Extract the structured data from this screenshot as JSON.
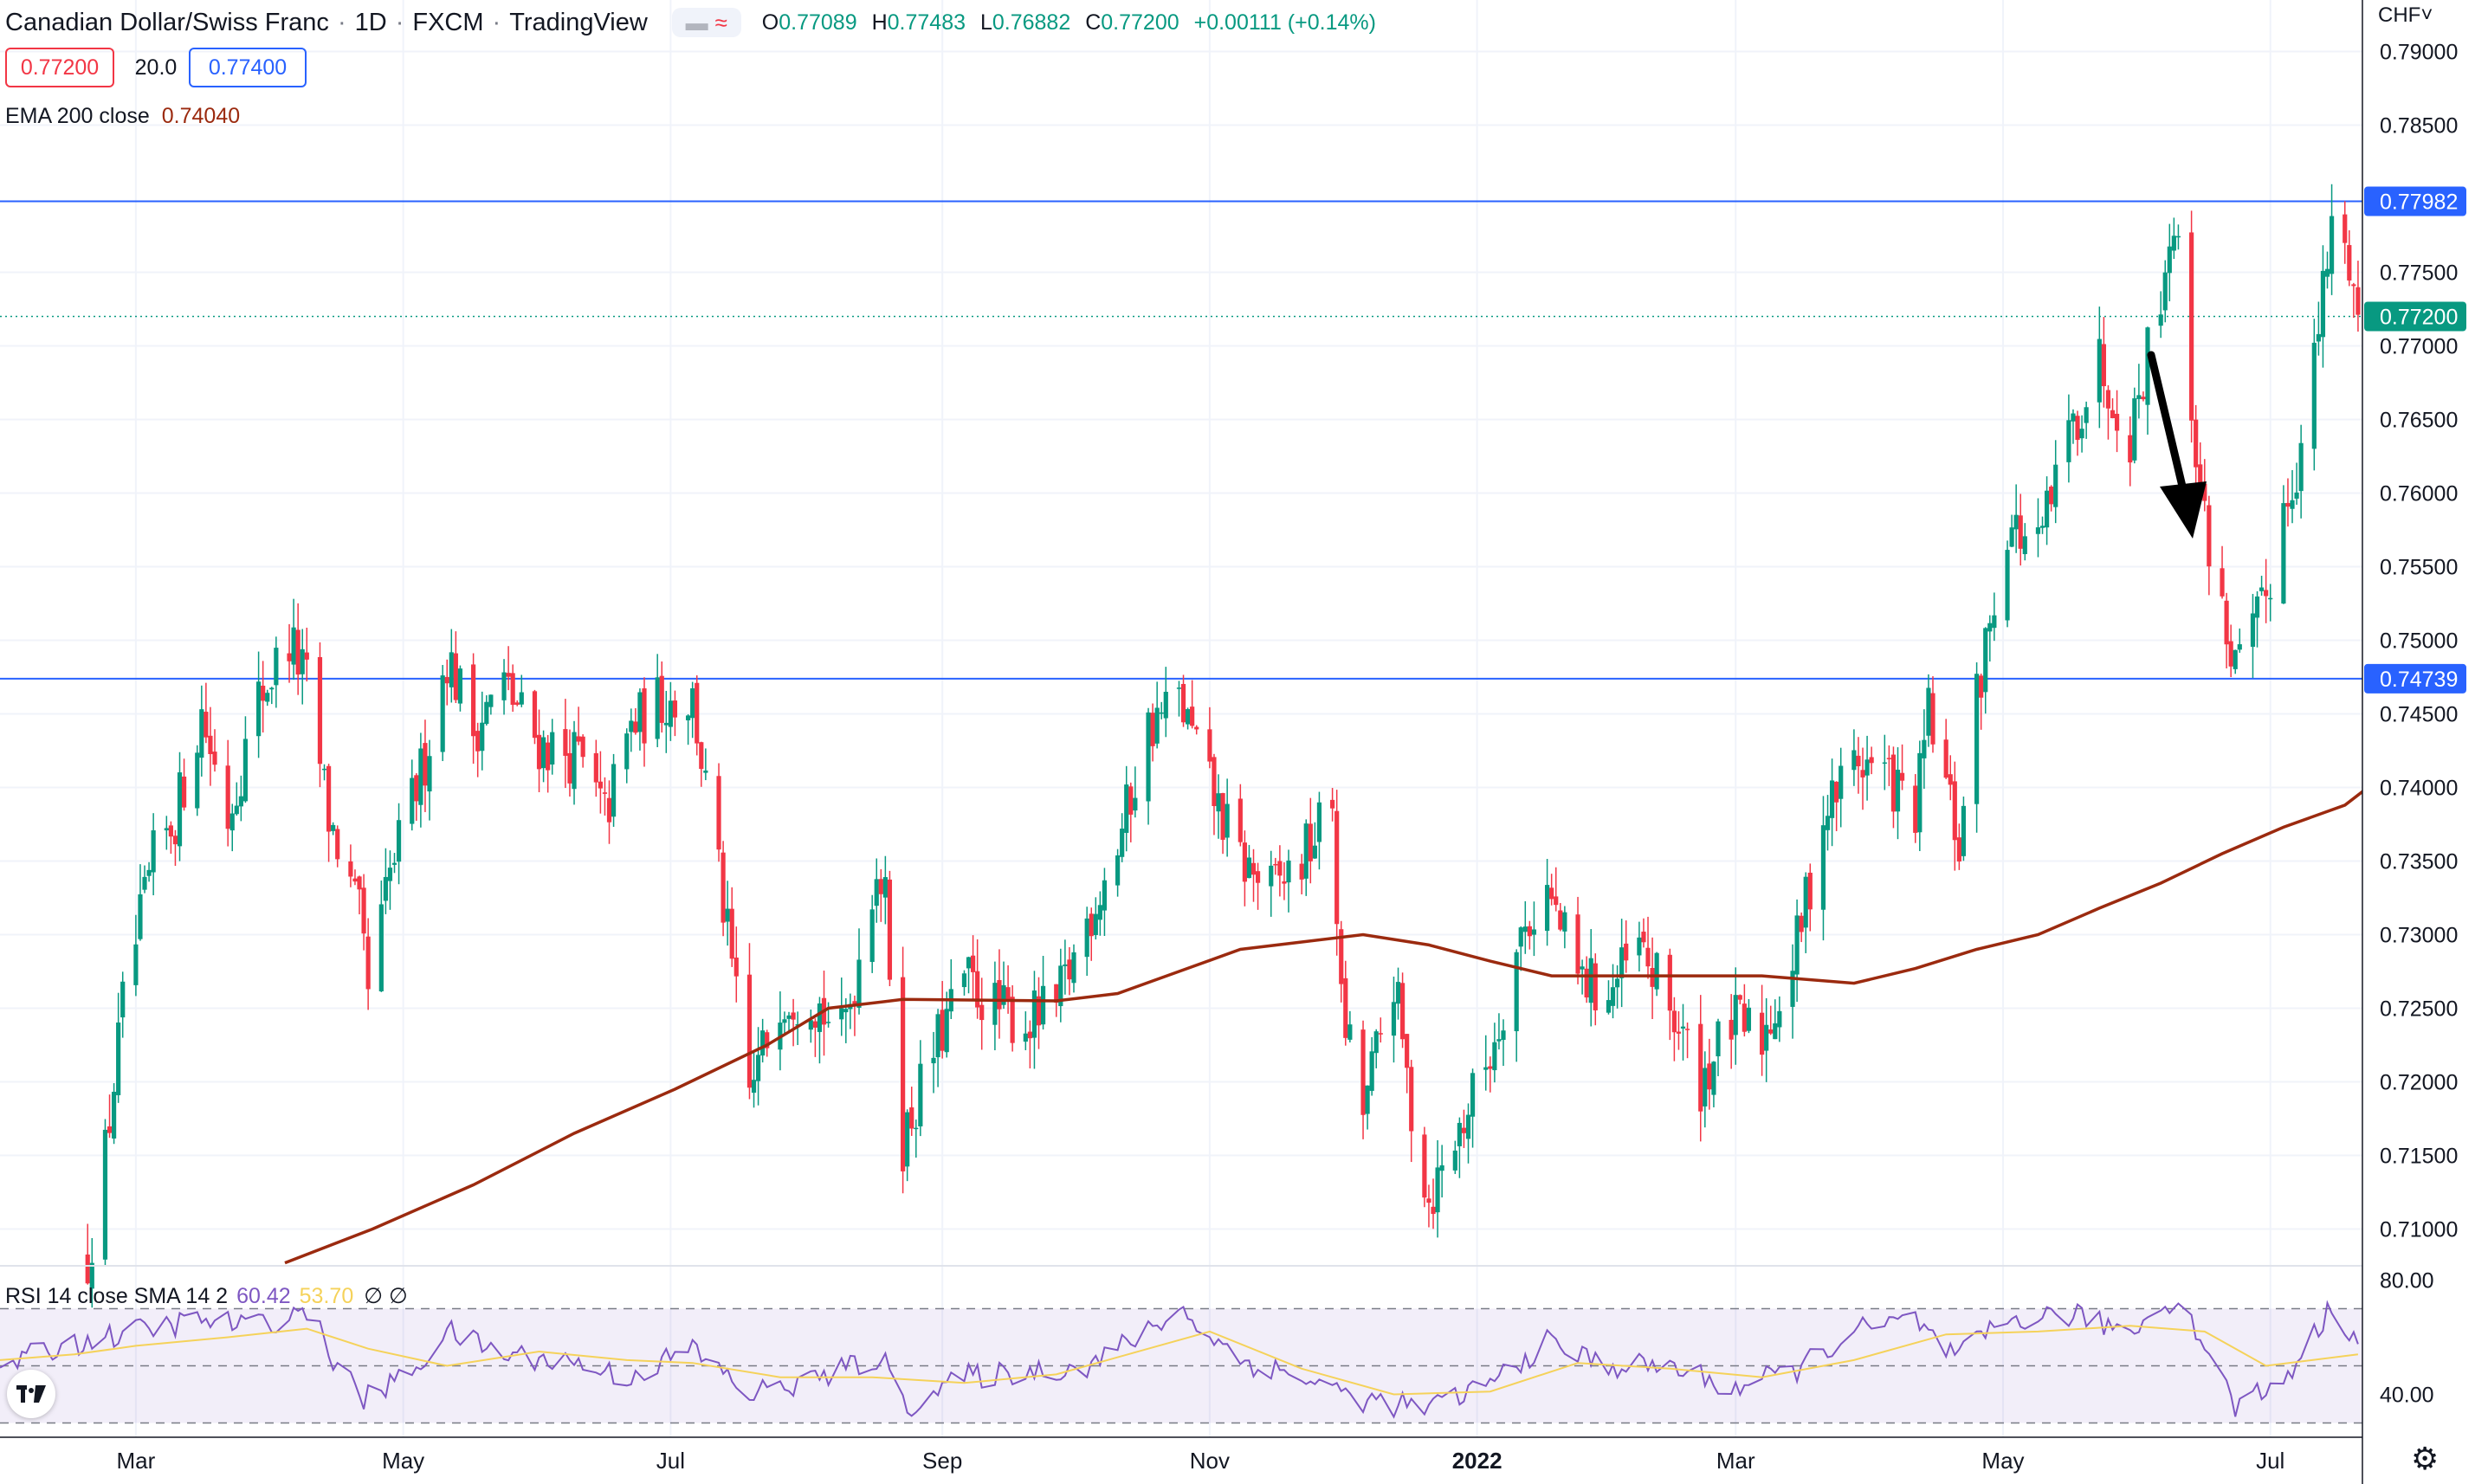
{
  "header": {
    "symbol": "Canadian Dollar/Swiss Franc",
    "interval": "1D",
    "exchange": "FXCM",
    "platform": "TradingView",
    "ohlc": {
      "o_label": "O",
      "o": "0.77089",
      "h_label": "H",
      "h": "0.77483",
      "l_label": "L",
      "l": "0.76882",
      "c_label": "C",
      "c": "0.77200",
      "change": "+0.00111 (+0.14%)"
    },
    "sell_price": "0.77200",
    "spread": "20.0",
    "buy_price": "0.77400"
  },
  "ema_legend": {
    "label": "EMA 200 close",
    "value": "0.74040"
  },
  "rsi_legend": {
    "label": "RSI 14 close SMA 14 2",
    "rsi_value": "60.42",
    "sma_value": "53.70",
    "extra": "∅ ∅"
  },
  "currency_label": "CHF˅",
  "icons": {
    "logo": "tradingview-logo-icon",
    "settings": "gear-icon",
    "annotation": "down-arrow-icon"
  },
  "colors": {
    "up": "#089981",
    "down": "#f23645",
    "ema": "#9b2a0f",
    "hline": "#2962ff",
    "rsi": "#7e57c2",
    "rsi_sma": "#f5d25a"
  },
  "chart_data": [
    {
      "type": "candlestick",
      "title": "",
      "ylim": [
        0.7075,
        0.7935
      ],
      "y_ticks": [
        "0.79000",
        "0.78500",
        "0.77500",
        "0.77000",
        "0.76500",
        "0.76000",
        "0.75500",
        "0.75000",
        "0.74500",
        "0.74000",
        "0.73500",
        "0.73000",
        "0.72500",
        "0.72000",
        "0.71500",
        "0.71000"
      ],
      "x_ticks": [
        "Mar",
        "May",
        "Jul",
        "Sep",
        "Nov",
        "2022",
        "Mar",
        "May",
        "Jul"
      ],
      "x_tick_dates": [
        "2021-03-01",
        "2021-05-01",
        "2021-07-01",
        "2021-09-01",
        "2021-11-01",
        "2022-01-01",
        "2022-03-01",
        "2022-05-01",
        "2022-07-01"
      ],
      "x_range": [
        "2021-01-29",
        "2022-07-22"
      ],
      "horizontal_levels": [
        {
          "value": 0.77982,
          "label": "0.77982"
        },
        {
          "value": 0.74739,
          "label": "0.74739"
        }
      ],
      "last_price": {
        "value": 0.772,
        "label": "0.77200"
      },
      "price_path": [
        [
          "2021-02-18",
          0.708
        ],
        [
          "2021-02-22",
          0.715
        ],
        [
          "2021-02-26",
          0.725
        ],
        [
          "2021-03-05",
          0.735
        ],
        [
          "2021-03-10",
          0.738
        ],
        [
          "2021-03-16",
          0.745
        ],
        [
          "2021-03-22",
          0.738
        ],
        [
          "2021-03-29",
          0.746
        ],
        [
          "2021-04-05",
          0.75
        ],
        [
          "2021-04-09",
          0.747
        ],
        [
          "2021-04-14",
          0.738
        ],
        [
          "2021-04-21",
          0.731
        ],
        [
          "2021-04-23",
          0.726
        ],
        [
          "2021-04-28",
          0.734
        ],
        [
          "2021-05-06",
          0.742
        ],
        [
          "2021-05-11",
          0.749
        ],
        [
          "2021-05-17",
          0.744
        ],
        [
          "2021-05-24",
          0.747
        ],
        [
          "2021-06-01",
          0.743
        ],
        [
          "2021-06-10",
          0.742
        ],
        [
          "2021-06-16",
          0.738
        ],
        [
          "2021-06-22",
          0.744
        ],
        [
          "2021-06-29",
          0.746
        ],
        [
          "2021-07-06",
          0.746
        ],
        [
          "2021-07-12",
          0.734
        ],
        [
          "2021-07-19",
          0.719
        ],
        [
          "2021-07-26",
          0.726
        ],
        [
          "2021-08-02",
          0.726
        ],
        [
          "2021-08-09",
          0.723
        ],
        [
          "2021-08-12",
          0.727
        ],
        [
          "2021-08-17",
          0.735
        ],
        [
          "2021-08-19",
          0.732
        ],
        [
          "2021-08-23",
          0.716
        ],
        [
          "2021-08-30",
          0.722
        ],
        [
          "2021-09-06",
          0.727
        ],
        [
          "2021-09-13",
          0.725
        ],
        [
          "2021-09-20",
          0.724
        ],
        [
          "2021-09-27",
          0.725
        ],
        [
          "2021-10-04",
          0.731
        ],
        [
          "2021-10-11",
          0.736
        ],
        [
          "2021-10-18",
          0.744
        ],
        [
          "2021-10-25",
          0.746
        ],
        [
          "2021-11-01",
          0.74
        ],
        [
          "2021-11-08",
          0.735
        ],
        [
          "2021-11-15",
          0.733
        ],
        [
          "2021-11-22",
          0.735
        ],
        [
          "2021-11-29",
          0.739
        ],
        [
          "2021-12-01",
          0.725
        ],
        [
          "2021-12-06",
          0.718
        ],
        [
          "2021-12-13",
          0.727
        ],
        [
          "2021-12-17",
          0.718
        ],
        [
          "2021-12-21",
          0.712
        ],
        [
          "2021-12-27",
          0.716
        ],
        [
          "2022-01-04",
          0.722
        ],
        [
          "2022-01-11",
          0.73
        ],
        [
          "2022-01-17",
          0.733
        ],
        [
          "2022-01-24",
          0.727
        ],
        [
          "2022-01-31",
          0.726
        ],
        [
          "2022-02-07",
          0.729
        ],
        [
          "2022-02-14",
          0.725
        ],
        [
          "2022-02-21",
          0.72
        ],
        [
          "2022-02-28",
          0.724
        ],
        [
          "2022-03-07",
          0.723
        ],
        [
          "2022-03-14",
          0.728
        ],
        [
          "2022-03-21",
          0.738
        ],
        [
          "2022-03-28",
          0.742
        ],
        [
          "2022-04-04",
          0.741
        ],
        [
          "2022-04-11",
          0.738
        ],
        [
          "2022-04-14",
          0.745
        ],
        [
          "2022-04-18",
          0.74
        ],
        [
          "2022-04-21",
          0.736
        ],
        [
          "2022-04-25",
          0.746
        ],
        [
          "2022-05-02",
          0.758
        ],
        [
          "2022-05-09",
          0.756
        ],
        [
          "2022-05-16",
          0.764
        ],
        [
          "2022-05-23",
          0.769
        ],
        [
          "2022-05-30",
          0.764
        ],
        [
          "2022-06-06",
          0.774
        ],
        [
          "2022-06-09",
          0.779
        ],
        [
          "2022-06-13",
          0.766
        ],
        [
          "2022-06-16",
          0.758
        ],
        [
          "2022-06-20",
          0.752
        ],
        [
          "2022-06-23",
          0.748
        ],
        [
          "2022-06-27",
          0.75
        ],
        [
          "2022-06-30",
          0.753
        ],
        [
          "2022-07-04",
          0.759
        ],
        [
          "2022-07-08",
          0.763
        ],
        [
          "2022-07-12",
          0.771
        ],
        [
          "2022-07-15",
          0.778
        ],
        [
          "2022-07-19",
          0.776
        ],
        [
          "2022-07-21",
          0.772
        ]
      ],
      "ema_200": [
        [
          "2021-04-04",
          0.7077
        ],
        [
          "2021-04-24",
          0.71
        ],
        [
          "2021-05-17",
          0.713
        ],
        [
          "2021-06-09",
          0.7165
        ],
        [
          "2021-07-02",
          0.7195
        ],
        [
          "2021-07-23",
          0.7225
        ],
        [
          "2021-08-06",
          0.725
        ],
        [
          "2021-08-23",
          0.7256
        ],
        [
          "2021-09-27",
          0.7255
        ],
        [
          "2021-10-11",
          0.726
        ],
        [
          "2021-10-25",
          0.7275
        ],
        [
          "2021-11-08",
          0.729
        ],
        [
          "2021-11-22",
          0.7295
        ],
        [
          "2021-12-06",
          0.73
        ],
        [
          "2021-12-21",
          0.7293
        ],
        [
          "2022-01-04",
          0.7282
        ],
        [
          "2022-01-18",
          0.7272
        ],
        [
          "2022-02-14",
          0.7272
        ],
        [
          "2022-03-07",
          0.7272
        ],
        [
          "2022-03-28",
          0.7267
        ],
        [
          "2022-04-11",
          0.7277
        ],
        [
          "2022-04-25",
          0.729
        ],
        [
          "2022-05-09",
          0.73
        ],
        [
          "2022-05-23",
          0.7318
        ],
        [
          "2022-06-06",
          0.7335
        ],
        [
          "2022-06-20",
          0.7355
        ],
        [
          "2022-07-04",
          0.7373
        ],
        [
          "2022-07-18",
          0.7388
        ],
        [
          "2022-07-25",
          0.7404
        ]
      ]
    },
    {
      "type": "line",
      "title": "RSI",
      "ylim": [
        25,
        85
      ],
      "y_ticks": [
        "80.00",
        "40.00"
      ],
      "bands": [
        70,
        50,
        30
      ],
      "series": [
        {
          "name": "RSI",
          "values": [
            [
              "2021-01-29",
              50
            ],
            [
              "2021-02-15",
              58
            ],
            [
              "2021-03-01",
              62
            ],
            [
              "2021-03-15",
              66
            ],
            [
              "2021-03-29",
              64
            ],
            [
              "2021-04-09",
              70
            ],
            [
              "2021-04-16",
              50
            ],
            [
              "2021-04-22",
              38
            ],
            [
              "2021-05-03",
              48
            ],
            [
              "2021-05-11",
              62
            ],
            [
              "2021-05-24",
              54
            ],
            [
              "2021-06-07",
              52
            ],
            [
              "2021-06-21",
              46
            ],
            [
              "2021-07-06",
              56
            ],
            [
              "2021-07-19",
              40
            ],
            [
              "2021-08-02",
              45
            ],
            [
              "2021-08-18",
              53
            ],
            [
              "2021-08-24",
              36
            ],
            [
              "2021-09-06",
              46
            ],
            [
              "2021-09-20",
              48
            ],
            [
              "2021-10-04",
              50
            ],
            [
              "2021-10-18",
              62
            ],
            [
              "2021-10-25",
              70
            ],
            [
              "2021-11-08",
              52
            ],
            [
              "2021-11-22",
              46
            ],
            [
              "2021-12-06",
              38
            ],
            [
              "2021-12-21",
              35
            ],
            [
              "2022-01-04",
              44
            ],
            [
              "2022-01-17",
              58
            ],
            [
              "2022-01-31",
              50
            ],
            [
              "2022-02-14",
              50
            ],
            [
              "2022-02-28",
              42
            ],
            [
              "2022-03-14",
              48
            ],
            [
              "2022-03-28",
              62
            ],
            [
              "2022-04-11",
              66
            ],
            [
              "2022-04-20",
              52
            ],
            [
              "2022-05-02",
              66
            ],
            [
              "2022-05-16",
              68
            ],
            [
              "2022-05-30",
              62
            ],
            [
              "2022-06-09",
              74
            ],
            [
              "2022-06-16",
              58
            ],
            [
              "2022-06-23",
              36
            ],
            [
              "2022-07-04",
              45
            ],
            [
              "2022-07-15",
              70
            ],
            [
              "2022-07-21",
              60
            ]
          ]
        },
        {
          "name": "SMA",
          "values": [
            [
              "2021-01-29",
              52
            ],
            [
              "2021-02-15",
              54
            ],
            [
              "2021-03-01",
              57
            ],
            [
              "2021-03-22",
              60
            ],
            [
              "2021-04-09",
              63
            ],
            [
              "2021-04-23",
              56
            ],
            [
              "2021-05-11",
              50
            ],
            [
              "2021-06-01",
              55
            ],
            [
              "2021-06-21",
              52
            ],
            [
              "2021-07-06",
              51
            ],
            [
              "2021-07-26",
              46
            ],
            [
              "2021-08-16",
              46
            ],
            [
              "2021-09-06",
              44
            ],
            [
              "2021-09-27",
              47
            ],
            [
              "2021-10-18",
              56
            ],
            [
              "2021-11-01",
              62
            ],
            [
              "2021-11-22",
              49
            ],
            [
              "2021-12-13",
              40
            ],
            [
              "2022-01-04",
              41
            ],
            [
              "2022-01-24",
              51
            ],
            [
              "2022-02-14",
              49
            ],
            [
              "2022-03-07",
              46
            ],
            [
              "2022-03-28",
              52
            ],
            [
              "2022-04-18",
              61
            ],
            [
              "2022-05-09",
              62
            ],
            [
              "2022-05-30",
              64
            ],
            [
              "2022-06-16",
              62
            ],
            [
              "2022-06-30",
              50
            ],
            [
              "2022-07-21",
              54
            ]
          ]
        }
      ]
    }
  ]
}
